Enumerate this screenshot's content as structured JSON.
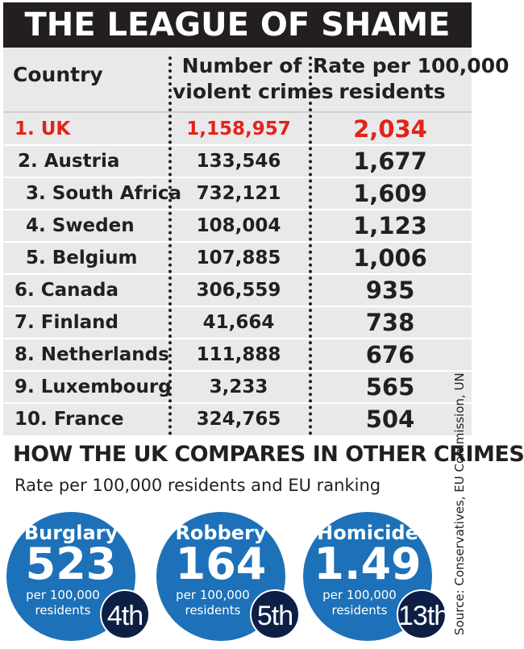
{
  "title": "THE LEAGUE OF SHAME",
  "columns": {
    "country": "Country",
    "crimes": "Number of violent crimes",
    "crimes_line1": "Number of",
    "crimes_line2": "violent crimes",
    "rate": "Rate per 100,000 residents",
    "rate_line1": "Rate per 100,000",
    "rate_line2": "residents"
  },
  "chart_data": [
    {
      "type": "table",
      "columns": [
        "Country",
        "Number of violent crimes",
        "Rate per 100,000 residents"
      ],
      "rows": [
        {
          "rank_label": "1. UK",
          "crimes": "1,158,957",
          "rate": "2,034"
        },
        {
          "rank_label": "2. Austria",
          "crimes": "133,546",
          "rate": "1,677"
        },
        {
          "rank_label": "3. South Africa",
          "crimes": "732,121",
          "rate": "1,609"
        },
        {
          "rank_label": "4. Sweden",
          "crimes": "108,004",
          "rate": "1,123"
        },
        {
          "rank_label": "5. Belgium",
          "crimes": "107,885",
          "rate": "1,006"
        },
        {
          "rank_label": "6. Canada",
          "crimes": "306,559",
          "rate": "935"
        },
        {
          "rank_label": "7. Finland",
          "crimes": "41,664",
          "rate": "738"
        },
        {
          "rank_label": "8. Netherlands",
          "crimes": "111,888",
          "rate": "676"
        },
        {
          "rank_label": "9. Luxembourg",
          "crimes": "3,233",
          "rate": "565"
        },
        {
          "rank_label": "10. France",
          "crimes": "324,765",
          "rate": "504"
        }
      ],
      "highlight_color": "#e2231a"
    },
    {
      "type": "table",
      "title": "HOW THE UK COMPARES IN OTHER CRIMES",
      "subtitle": "Rate per 100,000 residents and EU ranking",
      "items": [
        {
          "label": "Burglary",
          "value": "523",
          "unit_line1": "per 100,000",
          "unit_line2": "residents",
          "rank": "4th"
        },
        {
          "label": "Robbery",
          "value": "164",
          "unit_line1": "per 100,000",
          "unit_line2": "residents",
          "rank": "5th"
        },
        {
          "label": "Homicide",
          "value": "1.49",
          "unit_line1": "per 100,000",
          "unit_line2": "residents",
          "rank": "13th"
        }
      ],
      "circle_color": "#1d71b8",
      "rank_color": "#0e1f45"
    }
  ],
  "source": "Source: Conservatives, EU Commission, UN",
  "colors": {
    "title_bg": "#231f20",
    "table_bg": "#e9e9e9",
    "text": "#231f20"
  }
}
